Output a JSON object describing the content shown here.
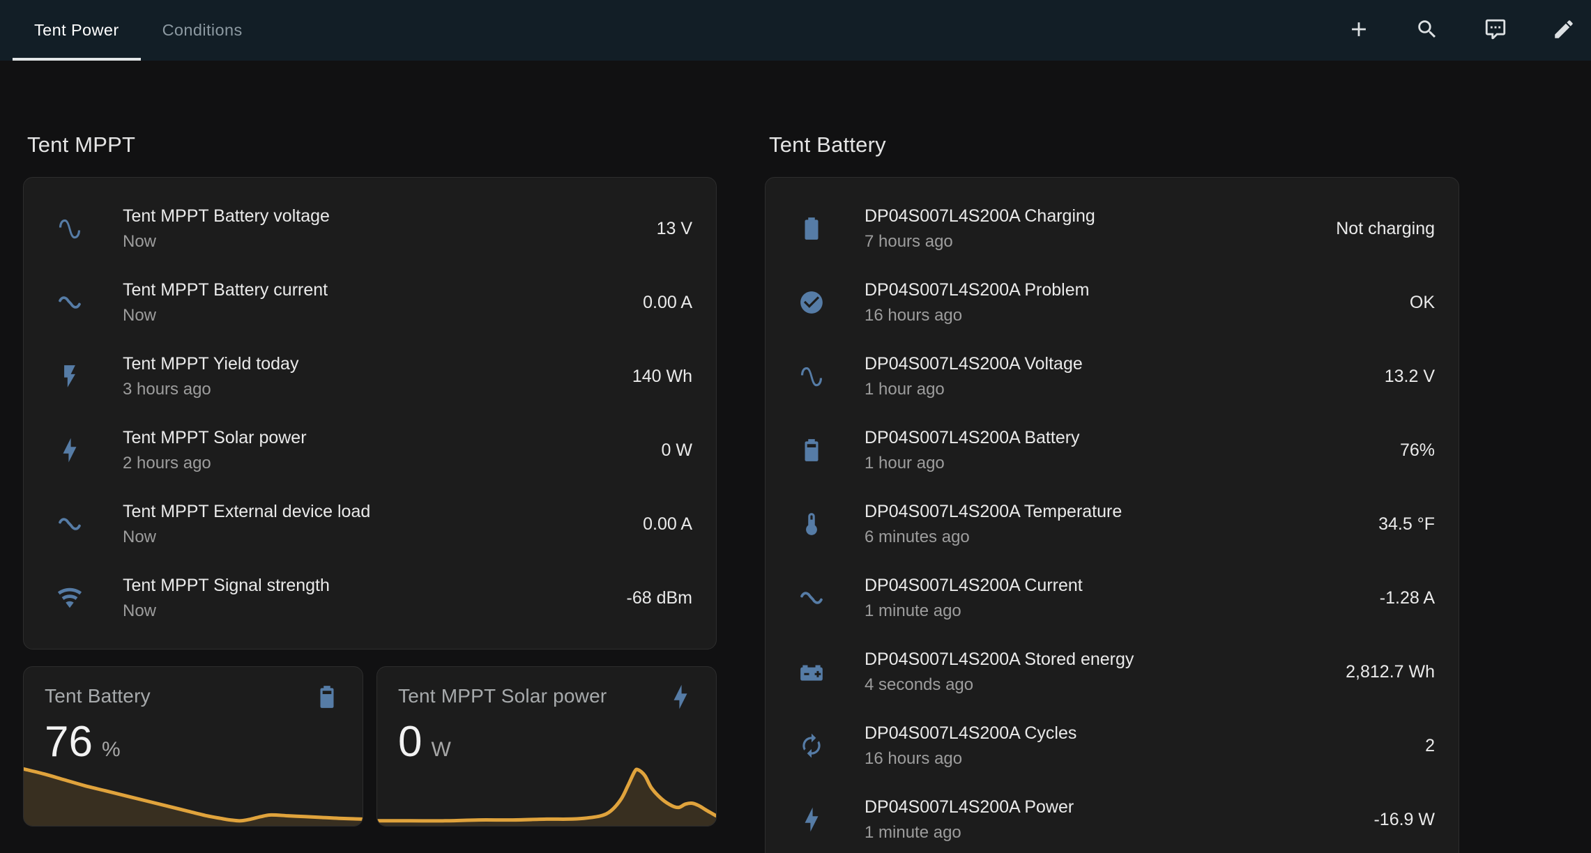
{
  "colors": {
    "page_background": "#111112",
    "header_background": "#121e26",
    "card_background": "#1c1c1c",
    "accent_icon_blue": "#567ca6",
    "graph_line_orange": "#e0a33c",
    "active_tab_underline": "#e2e5e6"
  },
  "header": {
    "tabs": [
      {
        "label": "Tent Power",
        "active": true
      },
      {
        "label": "Conditions",
        "active": false
      }
    ],
    "actions": [
      {
        "icon": "plus-icon"
      },
      {
        "icon": "search-icon"
      },
      {
        "icon": "assist-chat-icon"
      },
      {
        "icon": "edit-pencil-icon"
      }
    ]
  },
  "sections": [
    {
      "title": "Tent MPPT",
      "entities": [
        {
          "icon": "sine-wave",
          "name": "Tent MPPT Battery voltage",
          "last_changed": "Now",
          "value": "13 V"
        },
        {
          "icon": "current-ac",
          "name": "Tent MPPT Battery current",
          "last_changed": "Now",
          "value": "0.00 A"
        },
        {
          "icon": "flash",
          "name": "Tent MPPT Yield today",
          "last_changed": "3 hours ago",
          "value": "140 Wh"
        },
        {
          "icon": "lightning-bolt",
          "name": "Tent MPPT Solar power",
          "last_changed": "2 hours ago",
          "value": "0 W"
        },
        {
          "icon": "current-ac",
          "name": "Tent MPPT External device load",
          "last_changed": "Now",
          "value": "0.00 A"
        },
        {
          "icon": "wifi",
          "name": "Tent MPPT Signal strength",
          "last_changed": "Now",
          "value": "-68 dBm"
        }
      ]
    },
    {
      "title": "Tent Battery",
      "entities": [
        {
          "icon": "battery",
          "name": "DP04S007L4S200A Charging",
          "last_changed": "7 hours ago",
          "value": "Not charging"
        },
        {
          "icon": "check-circle",
          "name": "DP04S007L4S200A Problem",
          "last_changed": "16 hours ago",
          "value": "OK"
        },
        {
          "icon": "sine-wave",
          "name": "DP04S007L4S200A Voltage",
          "last_changed": "1 hour ago",
          "value": "13.2 V"
        },
        {
          "icon": "battery-70",
          "name": "DP04S007L4S200A Battery",
          "last_changed": "1 hour ago",
          "value": "76%"
        },
        {
          "icon": "thermometer",
          "name": "DP04S007L4S200A Temperature",
          "last_changed": "6 minutes ago",
          "value": "34.5 °F"
        },
        {
          "icon": "current-ac",
          "name": "DP04S007L4S200A Current",
          "last_changed": "1 minute ago",
          "value": "-1.28 A"
        },
        {
          "icon": "car-battery",
          "name": "DP04S007L4S200A Stored energy",
          "last_changed": "4 seconds ago",
          "value": "2,812.7 Wh"
        },
        {
          "icon": "autorenew",
          "name": "DP04S007L4S200A Cycles",
          "last_changed": "16 hours ago",
          "value": "2"
        },
        {
          "icon": "lightning-bolt",
          "name": "DP04S007L4S200A Power",
          "last_changed": "1 minute ago",
          "value": "-16.9 W"
        }
      ]
    }
  ],
  "sensor_cards": [
    {
      "name": "Tent Battery",
      "icon": "battery-70",
      "value": "76",
      "unit": "%"
    },
    {
      "name": "Tent MPPT Solar power",
      "icon": "lightning-bolt",
      "value": "0",
      "unit": "W"
    }
  ],
  "chart_data": [
    {
      "type": "area",
      "title": "Tent Battery",
      "ylabel": "battery %",
      "xlabel": "time (sparkline, axes not shown)",
      "current_value": 76,
      "unit": "%",
      "legend": false,
      "grid": false,
      "line_color": "#e0a33c",
      "fill_color": "rgba(224,163,60,0.15)",
      "points_pct": [
        [
          0,
          32
        ],
        [
          6,
          38
        ],
        [
          12,
          45
        ],
        [
          18,
          52
        ],
        [
          24,
          58
        ],
        [
          30,
          64
        ],
        [
          36,
          70
        ],
        [
          42,
          76
        ],
        [
          48,
          82
        ],
        [
          54,
          88
        ],
        [
          58,
          91
        ],
        [
          61,
          93
        ],
        [
          64,
          94
        ],
        [
          67,
          92
        ],
        [
          70,
          89
        ],
        [
          73,
          87
        ],
        [
          78,
          88
        ],
        [
          83,
          89
        ],
        [
          88,
          90
        ],
        [
          93,
          91
        ],
        [
          100,
          92
        ]
      ]
    },
    {
      "type": "area",
      "title": "Tent MPPT Solar power",
      "ylabel": "power W",
      "xlabel": "time (sparkline, axes not shown)",
      "current_value": 0,
      "unit": "W",
      "legend": false,
      "grid": false,
      "line_color": "#e0a33c",
      "fill_color": "rgba(224,163,60,0.15)",
      "points_pct": [
        [
          0,
          94
        ],
        [
          10,
          94
        ],
        [
          20,
          94
        ],
        [
          30,
          93
        ],
        [
          40,
          93
        ],
        [
          50,
          92
        ],
        [
          56,
          92
        ],
        [
          61,
          91
        ],
        [
          66,
          88
        ],
        [
          69,
          82
        ],
        [
          72,
          68
        ],
        [
          74,
          52
        ],
        [
          76,
          35
        ],
        [
          77,
          33
        ],
        [
          79,
          40
        ],
        [
          81,
          55
        ],
        [
          84,
          68
        ],
        [
          87,
          76
        ],
        [
          89,
          78
        ],
        [
          91,
          74
        ],
        [
          93,
          73
        ],
        [
          95,
          76
        ],
        [
          97,
          81
        ],
        [
          100,
          88
        ]
      ]
    }
  ]
}
